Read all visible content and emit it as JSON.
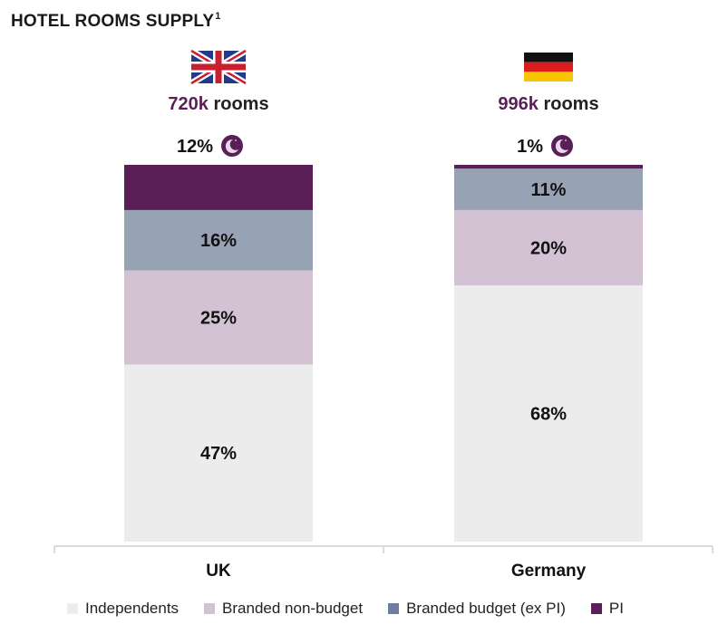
{
  "title": "HOTEL ROOMS SUPPLY",
  "title_superscript": "1",
  "colors": {
    "independents": "#ececec",
    "branded_non_budget": "#d2c2d4",
    "branded_budget": "#97a2b5",
    "pi": "#5a1f56",
    "accent_text": "#5a1f56",
    "axis": "#cfcfcf",
    "legend_branded_budget": "#6b7fa0"
  },
  "chart_data": {
    "type": "bar",
    "stacked": true,
    "normalized_percent": true,
    "categories": [
      "UK",
      "Germany"
    ],
    "totals": [
      {
        "number": "720k",
        "unit": "rooms"
      },
      {
        "number": "996k",
        "unit": "rooms"
      }
    ],
    "flags": [
      "uk-flag",
      "germany-flag"
    ],
    "series": [
      {
        "name": "Independents",
        "key": "independents",
        "values": [
          47,
          68
        ],
        "labels": [
          "47%",
          "68%"
        ]
      },
      {
        "name": "Branded non-budget",
        "key": "branded_non_budget",
        "values": [
          25,
          20
        ],
        "labels": [
          "25%",
          "20%"
        ]
      },
      {
        "name": "Branded budget (ex PI)",
        "key": "branded_budget",
        "values": [
          16,
          11
        ],
        "labels": [
          "16%",
          "11%"
        ]
      },
      {
        "name": "PI",
        "key": "pi",
        "values": [
          12,
          1
        ],
        "labels": [
          "12%",
          "1%"
        ]
      }
    ],
    "pi_icon": "moon-icon",
    "legend_position": "bottom",
    "grid": false
  }
}
